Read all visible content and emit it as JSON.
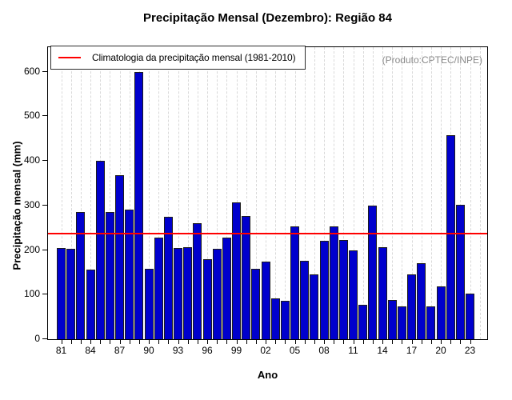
{
  "title": "Precipitação Mensal (Dezembro): Região 84",
  "watermark": "(Produto:CPTEC/INPE)",
  "legend": {
    "label": "Climatologia da precipitação mensal (1981-2010)",
    "line_color": "#FF0000",
    "position": "top-left"
  },
  "chart_data": {
    "type": "bar",
    "title": "Precipitação Mensal (Dezembro): Região 84",
    "xlabel": "Ano",
    "ylabel": "Precipitação mensal (mm)",
    "ylim": [
      0,
      655
    ],
    "yticks": [
      0,
      100,
      200,
      300,
      400,
      500,
      600
    ],
    "xtick_label_years": [
      "81",
      "84",
      "87",
      "90",
      "93",
      "96",
      "99",
      "02",
      "05",
      "08",
      "11",
      "14",
      "17",
      "20",
      "23"
    ],
    "grid": "vertical-dotted",
    "legend_position": "top-left",
    "years": [
      1981,
      1982,
      1983,
      1984,
      1985,
      1986,
      1987,
      1988,
      1989,
      1990,
      1991,
      1992,
      1993,
      1994,
      1995,
      1996,
      1997,
      1998,
      1999,
      2000,
      2001,
      2002,
      2003,
      2004,
      2005,
      2006,
      2007,
      2008,
      2009,
      2010,
      2011,
      2012,
      2013,
      2014,
      2015,
      2016,
      2017,
      2018,
      2019,
      2020,
      2021,
      2022,
      2023
    ],
    "values": [
      205,
      202,
      285,
      156,
      400,
      286,
      367,
      291,
      600,
      158,
      228,
      274,
      205,
      206,
      261,
      180,
      202,
      228,
      307,
      277,
      158,
      174,
      91,
      86,
      253,
      176,
      145,
      220,
      253,
      223,
      199,
      77,
      300,
      207,
      88,
      74,
      145,
      170,
      74,
      119,
      457,
      302,
      103
    ],
    "climatology_value": 237,
    "bar_color": "#0000CD",
    "bar_border_color": "#1c1c1c",
    "reference_line_color": "#FF0000",
    "gridline_color": "#d9d9d9"
  }
}
